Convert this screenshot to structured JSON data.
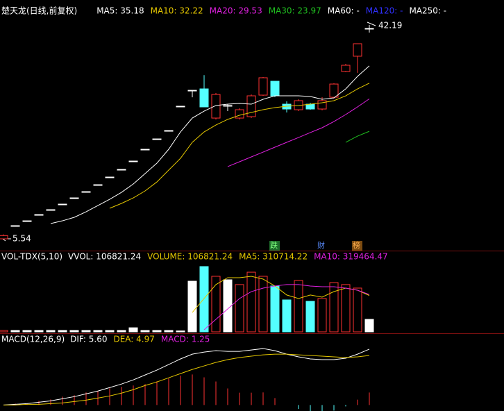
{
  "chart_data": [
    {
      "type": "candlestick",
      "title": "楚天龙(日线,前复权)",
      "open": [
        5.54,
        7.8,
        8.63,
        9.7,
        10.54,
        11.49,
        12.56,
        13.63,
        14.82,
        16.13,
        17.44,
        18.87,
        20.89,
        22.67,
        24.1,
        28.27,
        31.0,
        31.24,
        26.24,
        28.39,
        26.24,
        26.48,
        30.17,
        32.55,
        28.62,
        27.67,
        28.62,
        27.79,
        29.81,
        34.22,
        36.84,
        41.6
      ],
      "high": [
        6.3,
        7.8,
        8.63,
        9.7,
        10.54,
        11.49,
        12.56,
        13.63,
        14.82,
        16.13,
        17.44,
        18.87,
        20.89,
        22.67,
        24.1,
        28.27,
        31.0,
        33.6,
        30.53,
        28.62,
        27.91,
        30.29,
        33.27,
        32.55,
        29.1,
        29.46,
        28.86,
        29.81,
        32.19,
        35.53,
        38.98,
        42.19
      ],
      "low": [
        5.54,
        7.8,
        8.63,
        9.7,
        10.54,
        11.49,
        12.56,
        13.63,
        14.82,
        16.13,
        17.44,
        18.87,
        20.89,
        22.67,
        24.1,
        28.27,
        29.8,
        28.15,
        26.0,
        27.43,
        26.0,
        26.24,
        30.05,
        29.81,
        27.2,
        27.43,
        27.67,
        27.55,
        29.58,
        34.1,
        34.0,
        40.9
      ],
      "close": [
        6.1,
        7.8,
        8.63,
        9.7,
        10.54,
        11.49,
        12.56,
        13.63,
        14.82,
        16.13,
        17.44,
        18.87,
        20.89,
        22.67,
        24.1,
        28.27,
        31.0,
        28.15,
        30.29,
        28.39,
        27.67,
        30.05,
        33.15,
        30.05,
        27.79,
        29.22,
        27.79,
        29.22,
        32.07,
        35.29,
        38.98,
        41.6
      ],
      "up_color": "#ff3232",
      "down_color": "#54ffff",
      "flat_color": "#ffffff",
      "ylim": [
        4.59,
        43.38
      ],
      "lines": [
        {
          "legend": "MA5: 35.18",
          "color": "#ffffff",
          "values": [
            null,
            null,
            null,
            null,
            8.16,
            8.63,
            9.23,
            10.18,
            11.25,
            12.32,
            13.51,
            14.94,
            16.72,
            18.51,
            20.89,
            23.86,
            26.24,
            27.43,
            28.39,
            28.62,
            28.74,
            28.62,
            29.46,
            30.05,
            30.05,
            30.05,
            29.93,
            29.46,
            29.7,
            31.24,
            33.38,
            35.18
          ]
        },
        {
          "legend": "MA10: 32.22",
          "color": "#e6c800",
          "values": [
            null,
            null,
            null,
            null,
            null,
            null,
            null,
            null,
            null,
            10.78,
            11.61,
            12.56,
            13.75,
            15.29,
            17.32,
            19.34,
            22.08,
            23.86,
            25.05,
            26.01,
            26.72,
            27.2,
            27.67,
            28.03,
            28.27,
            28.39,
            28.62,
            28.86,
            29.22,
            30.05,
            31.24,
            32.22
          ]
        },
        {
          "legend": "MA20: 29.53",
          "color": "#e020e0",
          "values": [
            null,
            null,
            null,
            null,
            null,
            null,
            null,
            null,
            null,
            null,
            null,
            null,
            null,
            null,
            null,
            null,
            null,
            null,
            null,
            17.92,
            18.75,
            19.58,
            20.41,
            21.25,
            22.08,
            22.91,
            23.75,
            24.58,
            25.65,
            26.84,
            28.15,
            29.53
          ]
        },
        {
          "legend": "MA30: 23.97",
          "color": "#20c020",
          "values": [
            null,
            null,
            null,
            null,
            null,
            null,
            null,
            null,
            null,
            null,
            null,
            null,
            null,
            null,
            null,
            null,
            null,
            null,
            null,
            null,
            null,
            null,
            null,
            null,
            null,
            null,
            null,
            null,
            null,
            22.08,
            23.15,
            23.97
          ]
        }
      ],
      "legend_extra": [
        {
          "text": "MA60: -",
          "color": "#ffffff"
        },
        {
          "text": "MA120: -",
          "color": "#3030ff"
        },
        {
          "text": "MA250: -",
          "color": "#ffffff"
        }
      ],
      "annotations": [
        {
          "text": "42.19"
        },
        {
          "text": "5.54"
        },
        {
          "text": "跌"
        },
        {
          "text": "财"
        },
        {
          "text": "榜"
        }
      ]
    },
    {
      "type": "volume",
      "title": "VOL-TDX(5,10)",
      "values": [
        12000,
        12000,
        12000,
        12000,
        12000,
        12000,
        12000,
        12000,
        12000,
        12000,
        12000,
        35000,
        12000,
        12000,
        12000,
        8000,
        433000,
        558000,
        475000,
        445000,
        404000,
        510000,
        475000,
        392000,
        273000,
        439000,
        261000,
        285000,
        421000,
        404000,
        374000,
        106821.24
      ],
      "ylim": [
        0,
        593400
      ],
      "legend_extra": [
        {
          "text": "VVOL: 106821.24",
          "color": "#ffffff"
        },
        {
          "text": "VOLUME: 106821.24",
          "color": "#e6c800"
        }
      ],
      "lines": [
        {
          "legend": "MA5: 310714.22",
          "color": "#e6c800",
          "values": [
            null,
            null,
            null,
            null,
            null,
            null,
            null,
            null,
            null,
            null,
            null,
            null,
            null,
            null,
            null,
            null,
            166000,
            285000,
            404000,
            463000,
            463000,
            475000,
            451000,
            392000,
            315000,
            285000,
            315000,
            297000,
            344000,
            374000,
            356000,
            310714.22
          ]
        },
        {
          "legend": "MA10: 319464.47",
          "color": "#e020e0",
          "values": [
            null,
            null,
            null,
            null,
            null,
            null,
            null,
            null,
            null,
            null,
            null,
            null,
            null,
            null,
            null,
            null,
            null,
            18000,
            107000,
            196000,
            285000,
            344000,
            374000,
            392000,
            404000,
            404000,
            392000,
            386000,
            386000,
            374000,
            356000,
            319464.47
          ]
        }
      ]
    },
    {
      "type": "macd",
      "title": "MACD(12,26,9)",
      "ylim": [
        -0.6,
        6.5
      ],
      "lines": [
        {
          "legend": "DIF: 5.60",
          "color": "#ffffff",
          "values": [
            0,
            0.07,
            0.14,
            0.28,
            0.42,
            0.63,
            0.84,
            1.12,
            1.4,
            1.75,
            2.1,
            2.52,
            3.01,
            3.5,
            4.06,
            4.62,
            5.1,
            5.31,
            5.45,
            5.38,
            5.38,
            5.52,
            5.66,
            5.45,
            5.1,
            4.83,
            4.62,
            4.55,
            4.55,
            4.69,
            5.1,
            5.6
          ]
        },
        {
          "legend": "DEA: 4.97",
          "color": "#e6c800",
          "values": [
            0,
            0,
            0.07,
            0.07,
            0.14,
            0.21,
            0.35,
            0.49,
            0.7,
            0.91,
            1.19,
            1.54,
            1.96,
            2.31,
            2.73,
            3.15,
            3.57,
            3.92,
            4.27,
            4.55,
            4.76,
            4.9,
            5.03,
            5.1,
            5.1,
            5.03,
            4.97,
            4.9,
            4.83,
            4.76,
            4.83,
            4.97
          ]
        }
      ],
      "bars": {
        "legend": "MACD: 1.25",
        "color": "#e020e0",
        "up_color": "#ff3232",
        "down_color": "#54ffff",
        "values": [
          0,
          0.14,
          0.14,
          0.42,
          0.56,
          0.84,
          0.98,
          1.26,
          1.4,
          1.68,
          1.82,
          1.96,
          2.1,
          2.38,
          2.66,
          2.94,
          3.06,
          2.78,
          2.36,
          1.66,
          1.24,
          1.24,
          1.26,
          0.7,
          0,
          -0.4,
          -0.7,
          -0.7,
          -0.56,
          -0.14,
          0.54,
          1.25
        ]
      }
    }
  ]
}
